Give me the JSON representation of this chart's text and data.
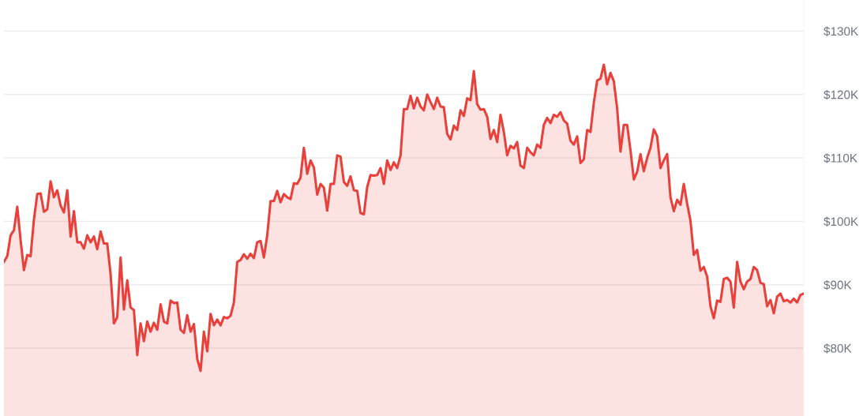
{
  "chart_data": {
    "type": "area",
    "categories": [
      null,
      null,
      null,
      null,
      null,
      null,
      null,
      null,
      null,
      null,
      null,
      null,
      null,
      null,
      null,
      null,
      null,
      null,
      null,
      null,
      null,
      null,
      null,
      null,
      null,
      null,
      null,
      null,
      null,
      null,
      null,
      null,
      null,
      null,
      null,
      null,
      null,
      null,
      null,
      null,
      null,
      null,
      null,
      null,
      null,
      null,
      null,
      null,
      null,
      null,
      null,
      null,
      null,
      null,
      null,
      null,
      null,
      null,
      null,
      null,
      null,
      null,
      null,
      null,
      null,
      null,
      null,
      null,
      null,
      null,
      null,
      null,
      null,
      null,
      null,
      null,
      null,
      null,
      null,
      null,
      null,
      null,
      null,
      null,
      null,
      null,
      null,
      null,
      null,
      null,
      null,
      null,
      null,
      null,
      null,
      null,
      null,
      null,
      null,
      null,
      null,
      null,
      null,
      null,
      null,
      null,
      null,
      null,
      null,
      null,
      null,
      null,
      null,
      null,
      null,
      null,
      null,
      null,
      null,
      null,
      null,
      null,
      null,
      null,
      null,
      null,
      null,
      null,
      null,
      null,
      null,
      null,
      null,
      null,
      null,
      null,
      null,
      null,
      null,
      null,
      null,
      null,
      null,
      null,
      null,
      null,
      null,
      null,
      null,
      null,
      null,
      null,
      null,
      null,
      null,
      null,
      null,
      null,
      null,
      null,
      null,
      null,
      null,
      null,
      null,
      null,
      null,
      null,
      null,
      null,
      null,
      null,
      null,
      null,
      null,
      null,
      null,
      null,
      null,
      null,
      null,
      null,
      null,
      null,
      null,
      null,
      null,
      null,
      null,
      null,
      null,
      null,
      null,
      null,
      null,
      null,
      null,
      null,
      null,
      null,
      null,
      null,
      null,
      null,
      null,
      null,
      null,
      null,
      null,
      null,
      null,
      null,
      null,
      null,
      null,
      null,
      null,
      null,
      null,
      null,
      null,
      null,
      null,
      null,
      null,
      null,
      null,
      null,
      null,
      null,
      null,
      null,
      null,
      null,
      null,
      null,
      null,
      null,
      null,
      null,
      null
    ],
    "series": [
      {
        "color": "#e8413c",
        "values": [
          93.6,
          94.5,
          97.8,
          98.6,
          102.3,
          97.0,
          92.3,
          94.7,
          94.5,
          100.3,
          104.3,
          104.4,
          101.5,
          101.9,
          106.3,
          103.8,
          104.9,
          102.5,
          101.4,
          104.9,
          97.6,
          101.6,
          96.7,
          96.7,
          95.7,
          97.8,
          96.7,
          97.6,
          95.6,
          98.4,
          96.5,
          96.5,
          91.7,
          83.9,
          84.9,
          94.3,
          86.1,
          90.7,
          86.4,
          86.0,
          78.9,
          83.9,
          81.1,
          84.2,
          82.6,
          84.0,
          82.9,
          86.9,
          84.2,
          83.9,
          87.5,
          87.1,
          87.2,
          82.9,
          82.4,
          85.2,
          82.6,
          83.8,
          78.3,
          76.4,
          82.6,
          79.5,
          85.4,
          83.6,
          84.5,
          83.6,
          84.9,
          84.7,
          85.1,
          87.2,
          93.6,
          93.9,
          94.8,
          94.1,
          94.9,
          94.2,
          96.7,
          96.9,
          94.3,
          97.8,
          103.2,
          103.2,
          104.8,
          103.0,
          104.3,
          103.8,
          103.5,
          106.0,
          105.9,
          106.9,
          111.6,
          107.5,
          109.6,
          108.5,
          104.2,
          105.9,
          105.3,
          101.7,
          105.9,
          105.9,
          110.4,
          110.2,
          106.2,
          105.6,
          107.1,
          104.9,
          104.8,
          101.3,
          101.1,
          105.4,
          107.3,
          107.2,
          107.3,
          108.4,
          105.9,
          109.6,
          108.1,
          109.3,
          108.4,
          110.4,
          117.7,
          117.7,
          119.8,
          117.8,
          119.5,
          118.1,
          117.5,
          120.0,
          118.8,
          117.7,
          119.5,
          118.1,
          118.0,
          113.8,
          112.9,
          115.1,
          114.4,
          117.5,
          116.6,
          119.4,
          119.1,
          123.7,
          118.5,
          117.6,
          117.7,
          116.5,
          113.0,
          114.4,
          112.5,
          116.8,
          114.1,
          110.4,
          111.9,
          111.5,
          112.5,
          108.8,
          108.4,
          111.6,
          110.9,
          110.4,
          112.1,
          111.6,
          115.2,
          116.3,
          115.5,
          116.8,
          116.5,
          117.2,
          115.9,
          115.4,
          112.7,
          112.1,
          113.4,
          109.2,
          109.8,
          114.4,
          114.1,
          118.7,
          122.2,
          122.5,
          124.7,
          121.6,
          123.4,
          122.1,
          117.8,
          111.0,
          115.2,
          115.2,
          111.2,
          106.6,
          107.8,
          110.6,
          107.9,
          110.0,
          111.6,
          114.5,
          113.4,
          108.4,
          109.6,
          110.6,
          103.8,
          101.6,
          103.4,
          102.6,
          105.9,
          102.8,
          100.1,
          94.7,
          95.5,
          92.2,
          92.8,
          91.3,
          86.6,
          84.7,
          87.5,
          87.3,
          90.9,
          91.1,
          90.5,
          86.4,
          93.6,
          90.5,
          89.3,
          90.5,
          90.9,
          92.8,
          92.3,
          90.3,
          90.1,
          86.6,
          87.6,
          85.5,
          88.1,
          88.6,
          87.4,
          87.6,
          87.2,
          87.8,
          87.2,
          88.4,
          88.6
        ]
      }
    ],
    "ylim": [
      69.3,
      134.9
    ],
    "yticks": [
      {
        "value": 80,
        "label": "$80K"
      },
      {
        "value": 90,
        "label": "$90K"
      },
      {
        "value": 100,
        "label": "$100K"
      },
      {
        "value": 110,
        "label": "$110K"
      },
      {
        "value": 120,
        "label": "$120K"
      },
      {
        "value": 130,
        "label": "$130K"
      }
    ],
    "grid": "y",
    "tick_labels": "y"
  }
}
